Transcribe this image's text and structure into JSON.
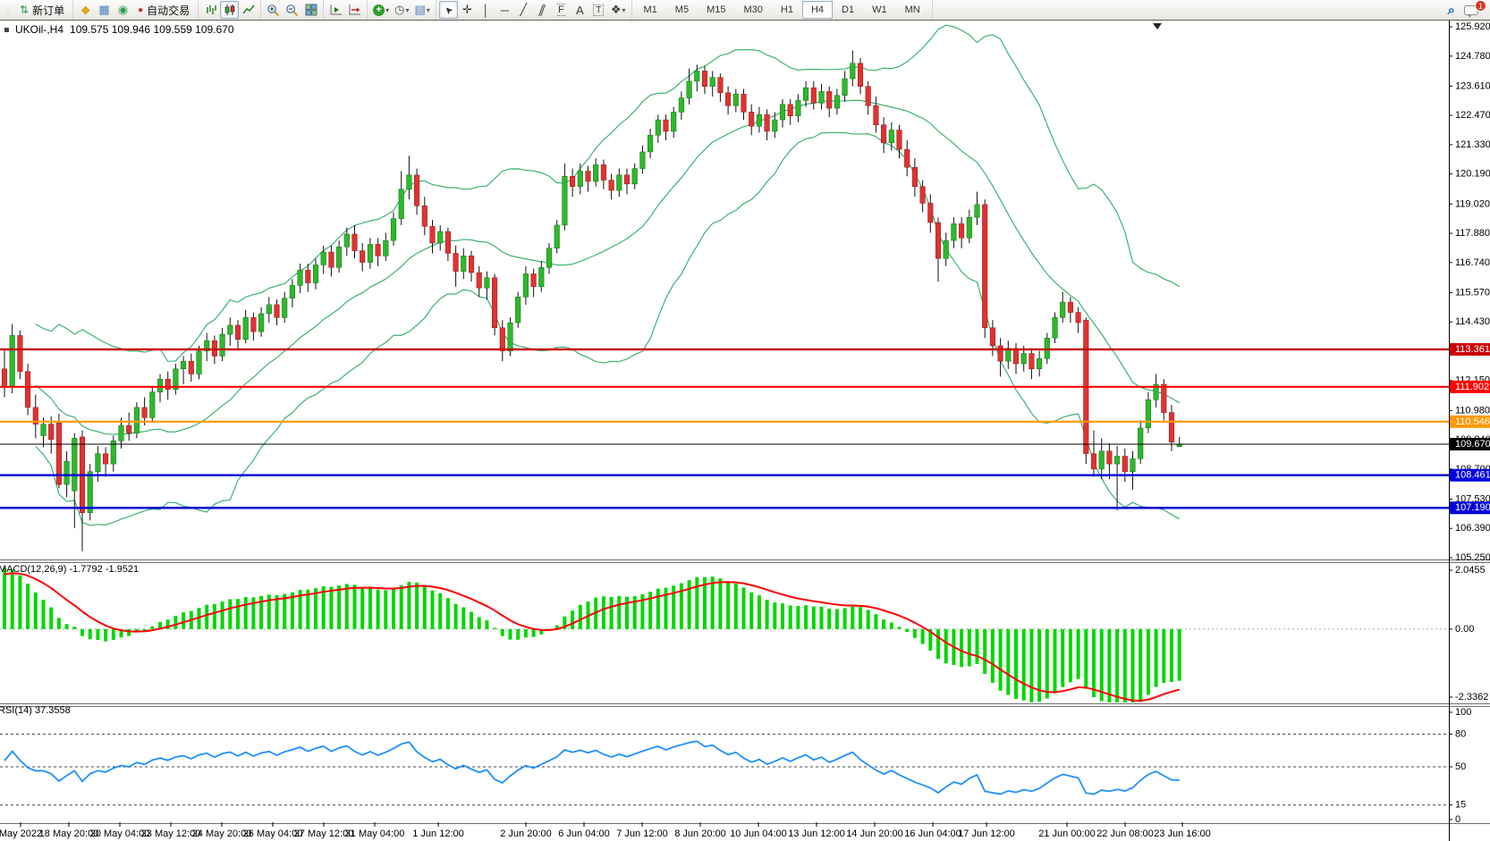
{
  "toolbar": {
    "new_order_label": "新订单",
    "autotrade_label": "自动交易",
    "timeframes": [
      "M1",
      "M5",
      "M15",
      "M30",
      "H1",
      "H4",
      "D1",
      "W1",
      "MN"
    ],
    "active_timeframe": "H4",
    "notification_count": "1"
  },
  "icons": {
    "updown": "⇅",
    "market_watch": "◆",
    "data_window": "▦",
    "navigator": "◉",
    "autotrading_dot": "●",
    "zoom_glass": "⌕",
    "plus": "+",
    "minus": "−",
    "play": "▶",
    "shift": "↦",
    "clock": "◷",
    "template": "▤",
    "cursor": "➤",
    "crosshair": "✛",
    "vline": "│",
    "hline": "─",
    "trendline": "╱",
    "channel": "∥",
    "fibo": "F",
    "text": "A",
    "textlabel": "T",
    "arrows": "❖",
    "caret": "▾",
    "grip": "⋮",
    "search": "⌕"
  },
  "chart": {
    "symbol_title": "UKOil-,H4",
    "ohlc_text": "109.575 109.946 109.559 109.670"
  },
  "colors": {
    "bull": "#2db82d",
    "bear": "#e13232",
    "wick": "#111111",
    "background": "#ffffff",
    "axis": "#000000"
  },
  "chart_data": {
    "type": "candlestick",
    "symbol": "UKOil-",
    "timeframe": "H4",
    "title_ohlc": {
      "open": 109.575,
      "high": 109.946,
      "low": 109.559,
      "close": 109.67
    },
    "price_axis": {
      "min": 105.25,
      "max": 125.92,
      "ticks": [
        [
          "125.920",
          125.92
        ],
        [
          "124.780",
          124.78
        ],
        [
          "123.610",
          123.61
        ],
        [
          "122.470",
          122.47
        ],
        [
          "121.330",
          121.33
        ],
        [
          "120.190",
          120.19
        ],
        [
          "119.020",
          119.02
        ],
        [
          "117.880",
          117.88
        ],
        [
          "116.740",
          116.74
        ],
        [
          "115.570",
          115.57
        ],
        [
          "114.430",
          114.43
        ],
        [
          "113.290",
          113.29
        ],
        [
          "112.150",
          112.15
        ],
        [
          "110.980",
          110.98
        ],
        [
          "109.840",
          109.84
        ],
        [
          "108.700",
          108.7
        ],
        [
          "107.530",
          107.53
        ],
        [
          "106.390",
          106.39
        ],
        [
          "105.250",
          105.25
        ]
      ]
    },
    "h_lines": [
      {
        "price": 113.361,
        "label": "113.361",
        "color": "#c80000",
        "width": 2.4
      },
      {
        "price": 111.902,
        "label": "111.902",
        "color": "#ff0000",
        "width": 2.2
      },
      {
        "price": 110.546,
        "label": "110.546",
        "color": "#ff9800",
        "width": 2.2
      },
      {
        "price": 109.67,
        "label": "109.670",
        "color": "#000000",
        "width": 1
      },
      {
        "price": 108.461,
        "label": "108.461",
        "color": "#0000dc",
        "width": 2.4
      },
      {
        "price": 107.19,
        "label": "107.190",
        "color": "#0000dc",
        "width": 2.4
      }
    ],
    "overlays": {
      "bollinger": {
        "period": 20,
        "deviation": 2,
        "color": "#3cb371"
      }
    },
    "indicators": {
      "macd": {
        "label": "MACD(12,26,9) -1.7792 -1.9521",
        "params": [
          12,
          26,
          9
        ],
        "value": -1.7792,
        "signal_value": -1.9521,
        "range": {
          "min": -2.3362,
          "max": 2.0455
        },
        "axis_ticks": [
          [
            "2.0455",
            2.0455
          ],
          [
            "0.00",
            0
          ],
          [
            "-2.3362",
            -2.3362
          ]
        ],
        "hist_color": "#00d800",
        "signal_color": "#ff0000"
      },
      "rsi": {
        "label": "RSI(14) 37.3558",
        "period": 14,
        "value": 37.3558,
        "axis_ticks": [
          [
            "100",
            100
          ],
          [
            "80",
            80
          ],
          [
            "50",
            50
          ],
          [
            "15",
            15
          ],
          [
            "0",
            0
          ]
        ],
        "levels": [
          80,
          50,
          15
        ],
        "color": "#1e90ff"
      }
    },
    "time_axis": [
      [
        "May 2022",
        23
      ],
      [
        "18 May 20:00",
        77
      ],
      [
        "20 May 04:00",
        134
      ],
      [
        "23 May 12:00",
        191
      ],
      [
        "24 May 20:00",
        248
      ],
      [
        "26 May 04:00",
        305
      ],
      [
        "27 May 12:00",
        362
      ],
      [
        "31 May 04:00",
        419
      ],
      [
        "1 Jun 12:00",
        490
      ],
      [
        "2 Jun 20:00",
        588
      ],
      [
        "6 Jun 04:00",
        653
      ],
      [
        "7 Jun 12:00",
        718
      ],
      [
        "8 Jun 20:00",
        783
      ],
      [
        "10 Jun 04:00",
        848
      ],
      [
        "13 Jun 12:00",
        913
      ],
      [
        "14 Jun 20:00",
        978
      ],
      [
        "16 Jun 04:00",
        1043
      ],
      [
        "17 Jun 12:00",
        1103
      ],
      [
        "21 Jun 00:00",
        1193
      ],
      [
        "22 Jun 08:00",
        1258
      ],
      [
        "23 Jun 16:00",
        1322
      ]
    ],
    "candles": [
      [
        112.6,
        113.4,
        111.5,
        111.9
      ],
      [
        111.9,
        114.35,
        111.65,
        113.9
      ],
      [
        113.9,
        114.1,
        112.2,
        112.5
      ],
      [
        112.5,
        112.8,
        110.8,
        111.1
      ],
      [
        111.1,
        111.6,
        109.9,
        110.45
      ],
      [
        110.0,
        110.7,
        109.55,
        110.45
      ],
      [
        110.45,
        110.75,
        109.3,
        109.85
      ],
      [
        110.5,
        110.85,
        107.95,
        108.1
      ],
      [
        108.1,
        109.4,
        107.6,
        109.0
      ],
      [
        107.85,
        110.1,
        106.4,
        109.9
      ],
      [
        109.95,
        110.2,
        105.5,
        107.0
      ],
      [
        107.0,
        108.9,
        106.7,
        108.6
      ],
      [
        108.6,
        109.6,
        108.2,
        109.3
      ],
      [
        109.3,
        109.55,
        108.4,
        108.9
      ],
      [
        108.9,
        110.0,
        108.6,
        109.8
      ],
      [
        109.8,
        110.7,
        109.5,
        110.4
      ],
      [
        110.4,
        110.9,
        109.8,
        110.1
      ],
      [
        110.1,
        111.3,
        109.9,
        111.1
      ],
      [
        111.1,
        111.5,
        110.4,
        110.7
      ],
      [
        110.7,
        111.9,
        110.5,
        111.7
      ],
      [
        111.7,
        112.4,
        111.3,
        112.2
      ],
      [
        112.2,
        112.5,
        111.4,
        111.8
      ],
      [
        111.8,
        112.8,
        111.6,
        112.6
      ],
      [
        112.6,
        113.1,
        112.0,
        112.9
      ],
      [
        112.9,
        113.2,
        112.1,
        112.4
      ],
      [
        112.4,
        113.5,
        112.2,
        113.3
      ],
      [
        113.3,
        114.0,
        112.9,
        113.7
      ],
      [
        113.7,
        113.9,
        112.8,
        113.1
      ],
      [
        113.1,
        114.2,
        112.9,
        113.95
      ],
      [
        113.95,
        114.6,
        113.5,
        114.3
      ],
      [
        114.3,
        114.5,
        113.4,
        113.75
      ],
      [
        113.75,
        114.9,
        113.6,
        114.6
      ],
      [
        114.6,
        114.8,
        113.7,
        114.05
      ],
      [
        114.05,
        115.0,
        113.85,
        114.75
      ],
      [
        114.75,
        115.4,
        114.4,
        115.1
      ],
      [
        115.1,
        115.3,
        114.3,
        114.6
      ],
      [
        114.6,
        115.6,
        114.4,
        115.35
      ],
      [
        115.35,
        116.1,
        115.0,
        115.85
      ],
      [
        115.85,
        116.7,
        115.55,
        116.45
      ],
      [
        116.45,
        116.7,
        115.6,
        115.95
      ],
      [
        115.95,
        116.9,
        115.7,
        116.65
      ],
      [
        116.65,
        117.4,
        116.3,
        117.15
      ],
      [
        117.15,
        117.4,
        116.2,
        116.55
      ],
      [
        116.55,
        117.6,
        116.35,
        117.35
      ],
      [
        117.35,
        118.1,
        117.0,
        117.85
      ],
      [
        117.85,
        118.2,
        116.9,
        117.2
      ],
      [
        117.2,
        117.5,
        116.4,
        116.75
      ],
      [
        116.75,
        117.7,
        116.5,
        117.45
      ],
      [
        117.45,
        117.7,
        116.6,
        117.0
      ],
      [
        117.0,
        117.9,
        116.8,
        117.6
      ],
      [
        117.6,
        118.7,
        117.4,
        118.45
      ],
      [
        118.45,
        120.3,
        118.2,
        119.6
      ],
      [
        119.6,
        120.9,
        119.2,
        120.15
      ],
      [
        120.15,
        120.4,
        118.6,
        118.95
      ],
      [
        118.95,
        119.3,
        117.8,
        118.15
      ],
      [
        118.15,
        118.4,
        117.1,
        117.5
      ],
      [
        117.5,
        118.2,
        117.2,
        117.95
      ],
      [
        117.95,
        118.1,
        116.8,
        117.1
      ],
      [
        117.1,
        117.4,
        115.8,
        116.4
      ],
      [
        116.4,
        117.3,
        116.1,
        117.0
      ],
      [
        117.0,
        117.2,
        116.0,
        116.35
      ],
      [
        116.35,
        116.6,
        115.4,
        115.75
      ],
      [
        115.75,
        116.4,
        115.3,
        116.15
      ],
      [
        116.15,
        116.3,
        113.9,
        114.2
      ],
      [
        114.2,
        114.5,
        112.9,
        113.3
      ],
      [
        113.3,
        114.6,
        113.1,
        114.4
      ],
      [
        114.4,
        115.6,
        114.2,
        115.4
      ],
      [
        115.4,
        116.6,
        115.1,
        116.3
      ],
      [
        116.3,
        116.5,
        115.4,
        115.8
      ],
      [
        115.8,
        116.8,
        115.6,
        116.55
      ],
      [
        116.55,
        117.5,
        116.3,
        117.3
      ],
      [
        117.3,
        118.4,
        117.1,
        118.2
      ],
      [
        118.2,
        120.6,
        118.0,
        120.1
      ],
      [
        120.1,
        120.4,
        119.3,
        119.7
      ],
      [
        119.7,
        120.6,
        119.4,
        120.3
      ],
      [
        120.3,
        120.5,
        119.5,
        119.9
      ],
      [
        119.9,
        120.8,
        119.7,
        120.55
      ],
      [
        120.55,
        120.75,
        119.6,
        119.95
      ],
      [
        119.95,
        120.2,
        119.2,
        119.55
      ],
      [
        119.55,
        120.4,
        119.3,
        120.15
      ],
      [
        120.15,
        120.4,
        119.4,
        119.8
      ],
      [
        119.8,
        120.6,
        119.6,
        120.4
      ],
      [
        120.4,
        121.3,
        120.2,
        121.05
      ],
      [
        121.05,
        121.95,
        120.8,
        121.7
      ],
      [
        121.7,
        122.5,
        121.4,
        122.3
      ],
      [
        122.3,
        122.5,
        121.5,
        121.85
      ],
      [
        121.85,
        122.8,
        121.6,
        122.6
      ],
      [
        122.6,
        123.4,
        122.3,
        123.15
      ],
      [
        123.15,
        124.3,
        122.9,
        123.8
      ],
      [
        123.8,
        124.45,
        123.4,
        124.2
      ],
      [
        124.2,
        124.4,
        123.3,
        123.6
      ],
      [
        123.6,
        124.2,
        123.2,
        123.95
      ],
      [
        123.95,
        124.1,
        123.0,
        123.35
      ],
      [
        123.35,
        123.6,
        122.5,
        122.85
      ],
      [
        122.85,
        123.5,
        122.6,
        123.3
      ],
      [
        123.3,
        123.5,
        122.3,
        122.6
      ],
      [
        122.6,
        122.9,
        121.7,
        122.05
      ],
      [
        122.05,
        122.8,
        121.8,
        122.5
      ],
      [
        122.5,
        122.7,
        121.5,
        121.85
      ],
      [
        121.85,
        122.6,
        121.6,
        122.3
      ],
      [
        122.3,
        123.1,
        122.0,
        122.9
      ],
      [
        122.9,
        123.1,
        122.1,
        122.45
      ],
      [
        122.45,
        123.3,
        122.2,
        123.05
      ],
      [
        123.05,
        123.8,
        122.8,
        123.55
      ],
      [
        123.55,
        123.8,
        122.7,
        122.95
      ],
      [
        122.95,
        123.7,
        122.7,
        123.4
      ],
      [
        123.4,
        123.6,
        122.4,
        122.75
      ],
      [
        122.75,
        123.5,
        122.5,
        123.25
      ],
      [
        123.25,
        124.2,
        123.0,
        123.9
      ],
      [
        123.9,
        125.0,
        123.6,
        124.5
      ],
      [
        124.5,
        124.7,
        123.3,
        123.6
      ],
      [
        123.6,
        123.8,
        122.5,
        122.85
      ],
      [
        122.85,
        123.2,
        121.8,
        122.1
      ],
      [
        122.1,
        122.4,
        121.0,
        121.4
      ],
      [
        121.4,
        122.2,
        121.1,
        121.9
      ],
      [
        121.9,
        122.1,
        120.8,
        121.15
      ],
      [
        121.15,
        121.5,
        120.1,
        120.45
      ],
      [
        120.45,
        120.8,
        119.3,
        119.7
      ],
      [
        119.7,
        119.95,
        118.7,
        119.05
      ],
      [
        119.05,
        119.4,
        117.9,
        118.3
      ],
      [
        118.3,
        118.5,
        116.0,
        116.9
      ],
      [
        116.9,
        117.9,
        116.6,
        117.6
      ],
      [
        117.6,
        118.5,
        117.3,
        118.25
      ],
      [
        118.25,
        118.5,
        117.3,
        117.7
      ],
      [
        117.7,
        118.8,
        117.5,
        118.5
      ],
      [
        118.5,
        119.5,
        118.2,
        119.0
      ],
      [
        119.0,
        119.2,
        113.8,
        114.2
      ],
      [
        114.2,
        114.5,
        113.1,
        113.5
      ],
      [
        113.5,
        113.8,
        112.3,
        112.9
      ],
      [
        112.9,
        113.7,
        112.6,
        113.4
      ],
      [
        113.4,
        113.6,
        112.4,
        112.8
      ],
      [
        112.8,
        113.5,
        112.5,
        113.2
      ],
      [
        113.2,
        113.4,
        112.2,
        112.6
      ],
      [
        112.6,
        113.3,
        112.3,
        113.0
      ],
      [
        113.0,
        114.0,
        112.8,
        113.8
      ],
      [
        113.8,
        114.8,
        113.6,
        114.6
      ],
      [
        114.6,
        115.6,
        114.4,
        115.2
      ],
      [
        115.2,
        115.4,
        114.4,
        114.8
      ],
      [
        114.8,
        115.0,
        114.0,
        114.4
      ],
      [
        114.5,
        114.6,
        108.9,
        109.3
      ],
      [
        109.3,
        110.2,
        108.4,
        108.7
      ],
      [
        108.7,
        109.9,
        108.3,
        109.4
      ],
      [
        109.4,
        109.7,
        108.3,
        108.9
      ],
      [
        108.9,
        109.6,
        107.1,
        109.2
      ],
      [
        109.2,
        109.5,
        108.2,
        108.6
      ],
      [
        108.6,
        109.4,
        107.9,
        109.1
      ],
      [
        109.1,
        110.6,
        108.9,
        110.3
      ],
      [
        110.3,
        111.7,
        110.1,
        111.4
      ],
      [
        111.4,
        112.4,
        111.1,
        112.0
      ],
      [
        112.0,
        112.2,
        110.6,
        110.9
      ],
      [
        110.9,
        111.2,
        109.4,
        109.75
      ],
      [
        109.575,
        109.946,
        109.559,
        109.67
      ]
    ]
  }
}
